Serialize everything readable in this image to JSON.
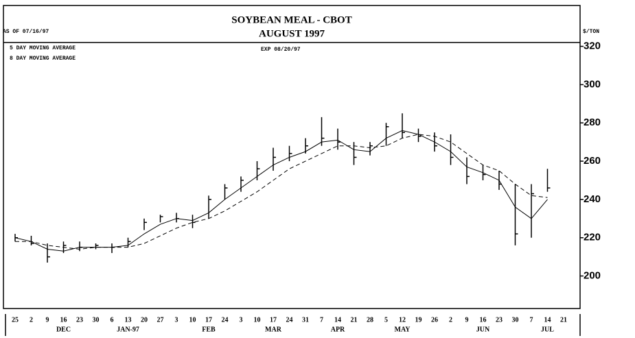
{
  "chart_data": {
    "type": "hlc",
    "title": "SOYBEAN MEAL - CBOT",
    "subtitle": "AUGUST 1997",
    "as_of": "AS OF 07/16/97",
    "expiry": "EXP 08/20/97",
    "y_unit": "$/TON",
    "categories": [
      "25",
      "2",
      "9",
      "16",
      "23",
      "30",
      "6",
      "13",
      "20",
      "27",
      "3",
      "10",
      "17",
      "24",
      "3",
      "10",
      "17",
      "24",
      "31",
      "7",
      "14",
      "21",
      "28",
      "5",
      "12",
      "19",
      "26",
      "2",
      "9",
      "16",
      "23",
      "30",
      "7",
      "14",
      "21"
    ],
    "month_labels": [
      null,
      null,
      null,
      "DEC",
      null,
      null,
      null,
      "JAN-97",
      null,
      null,
      null,
      null,
      "FEB",
      null,
      null,
      null,
      "MAR",
      null,
      null,
      null,
      "APR",
      null,
      null,
      null,
      "MAY",
      null,
      null,
      null,
      null,
      "JUN",
      null,
      null,
      null,
      "JUL",
      null
    ],
    "high": [
      222,
      221,
      217,
      218,
      218,
      217,
      217,
      220,
      230,
      232,
      233,
      232,
      242,
      248,
      252,
      260,
      267,
      268,
      272,
      283,
      277,
      270,
      270,
      280,
      285,
      277,
      275,
      274,
      262,
      258,
      255,
      248,
      248,
      256,
      null
    ],
    "low": [
      218,
      216,
      207,
      212,
      213,
      214,
      212,
      215,
      224,
      228,
      228,
      225,
      230,
      240,
      244,
      250,
      255,
      260,
      264,
      268,
      266,
      258,
      263,
      268,
      272,
      270,
      265,
      258,
      248,
      250,
      245,
      216,
      220,
      244,
      null
    ],
    "close": [
      220,
      217,
      210,
      216,
      215,
      216,
      215,
      218,
      228,
      231,
      230,
      228,
      240,
      246,
      250,
      256,
      262,
      264,
      268,
      272,
      270,
      262,
      268,
      278,
      275,
      273,
      268,
      262,
      252,
      253,
      248,
      222,
      243,
      246,
      null
    ],
    "color": "#000000",
    "series": [
      {
        "name": "5 DAY MOVING AVERAGE",
        "color": "#000000",
        "dash": false,
        "values": [
          220,
          218,
          214,
          213,
          215,
          215,
          215,
          216,
          222,
          227,
          230,
          229,
          233,
          240,
          246,
          252,
          258,
          262,
          265,
          270,
          271,
          266,
          265,
          272,
          276,
          274,
          270,
          265,
          257,
          254,
          250,
          236,
          230,
          240,
          null
        ]
      },
      {
        "name": "8 DAY MOVING AVERAGE",
        "color": "#000000",
        "dash": true,
        "values": [
          218,
          218,
          216,
          215,
          214,
          215,
          215,
          215,
          217,
          221,
          225,
          228,
          230,
          234,
          239,
          244,
          250,
          256,
          260,
          264,
          268,
          268,
          267,
          268,
          272,
          274,
          273,
          270,
          264,
          258,
          255,
          248,
          242,
          241,
          null
        ]
      }
    ],
    "ylim": [
      183,
      322
    ],
    "yticks": [
      200,
      220,
      240,
      260,
      280,
      300,
      320
    ]
  }
}
